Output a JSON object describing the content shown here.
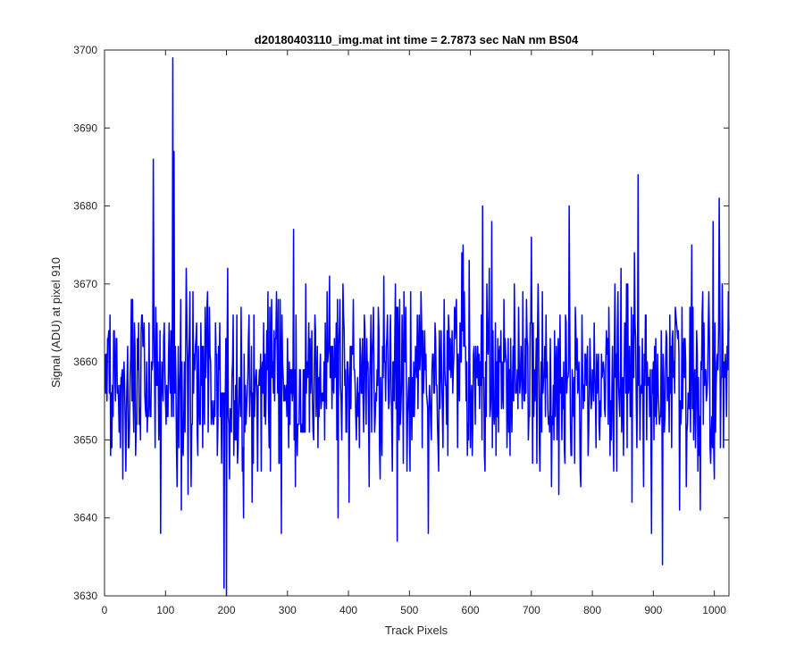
{
  "chart_data": {
    "type": "line",
    "title": "d20180403110_img.mat int time = 2.7873 sec  NaN nm BS04",
    "xlabel": "Track Pixels",
    "ylabel": "Signal (ADU) at pixel 910",
    "xlim": [
      0,
      1024
    ],
    "ylim": [
      3630,
      3700
    ],
    "xticks": [
      0,
      100,
      200,
      300,
      400,
      500,
      600,
      700,
      800,
      900,
      1000
    ],
    "yticks": [
      3630,
      3640,
      3650,
      3660,
      3670,
      3680,
      3690,
      3700
    ],
    "grid": false,
    "line_color": "#0000ff",
    "series": [
      {
        "x": [
          1,
          1024
        ],
        "values": [
          3660,
          3660
        ],
        "noise": {
          "mean": 3658,
          "std": 6,
          "min": 3630,
          "max": 3699,
          "seed": 910
        },
        "spikes": [
          {
            "x": 80,
            "y": 3686
          },
          {
            "x": 112,
            "y": 3699
          },
          {
            "x": 114,
            "y": 3687
          },
          {
            "x": 92,
            "y": 3638
          },
          {
            "x": 196,
            "y": 3631
          },
          {
            "x": 200,
            "y": 3630
          },
          {
            "x": 290,
            "y": 3638
          },
          {
            "x": 480,
            "y": 3637
          },
          {
            "x": 620,
            "y": 3680
          },
          {
            "x": 635,
            "y": 3678
          },
          {
            "x": 762,
            "y": 3680
          },
          {
            "x": 765,
            "y": 3648
          },
          {
            "x": 875,
            "y": 3684
          },
          {
            "x": 915,
            "y": 3634
          },
          {
            "x": 998,
            "y": 3678
          },
          {
            "x": 1008,
            "y": 3681
          }
        ]
      }
    ]
  }
}
